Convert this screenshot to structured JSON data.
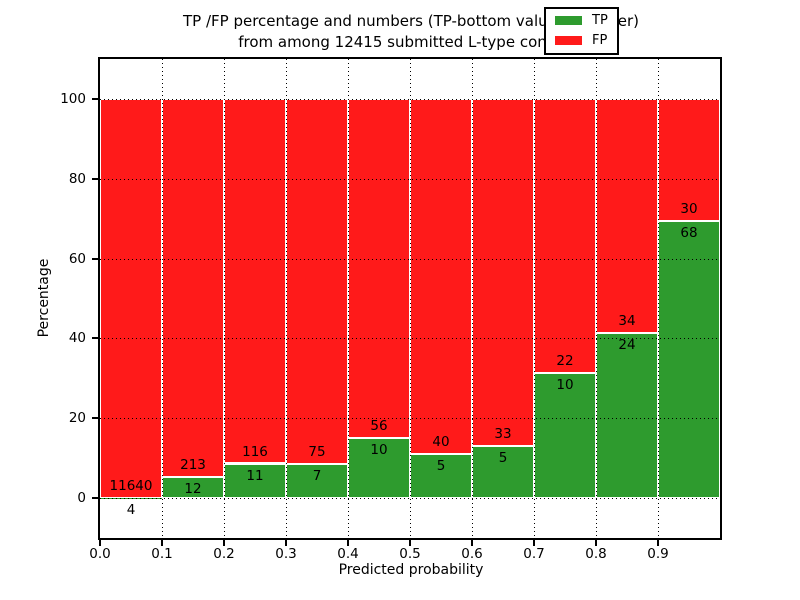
{
  "title": {
    "line1": "TP /FP percentage and numbers (TP-bottom value, FP-upper)",
    "line2": "from among 12415 submitted L-type contacts"
  },
  "axes": {
    "xlabel": "Predicted probability",
    "ylabel": "Percentage",
    "yticks": [
      0,
      20,
      40,
      60,
      80,
      100
    ],
    "xtick_labels": [
      "0.0",
      "0.1",
      "0.2",
      "0.3",
      "0.4",
      "0.5",
      "0.6",
      "0.7",
      "0.8",
      "0.9"
    ],
    "ylim": [
      -10,
      110
    ],
    "xlim": [
      0.0,
      1.0
    ]
  },
  "colors": {
    "tp": "#2e9b2e",
    "fp": "#ff1a1a"
  },
  "legend": {
    "items": [
      {
        "label": "TP",
        "color": "#2e9b2e"
      },
      {
        "label": "FP",
        "color": "#ff1a1a"
      }
    ],
    "position": "upper right"
  },
  "chart_data": {
    "type": "bar",
    "stacked": true,
    "normalized": "percent (each bin sums to 100)",
    "title": "TP /FP percentage and numbers (TP-bottom value, FP-upper) from among 12415 submitted L-type contacts",
    "xlabel": "Predicted probability",
    "ylabel": "Percentage",
    "xlim": [
      0.0,
      1.0
    ],
    "ylim": [
      -10,
      110
    ],
    "grid": "dotted, drawn above bars",
    "legend_position": "upper right",
    "total_submitted": 12415,
    "bin_edges": [
      0.0,
      0.1,
      0.2,
      0.3,
      0.4,
      0.5,
      0.6,
      0.7,
      0.8,
      0.9,
      1.0
    ],
    "categories": [
      "0.0-0.1",
      "0.1-0.2",
      "0.2-0.3",
      "0.3-0.4",
      "0.4-0.5",
      "0.5-0.6",
      "0.6-0.7",
      "0.7-0.8",
      "0.8-0.9",
      "0.9-1.0"
    ],
    "series": [
      {
        "name": "TP",
        "color": "#2e9b2e",
        "counts": [
          4,
          12,
          11,
          7,
          10,
          5,
          5,
          10,
          24,
          68
        ],
        "percent": [
          0.03,
          5.33,
          8.66,
          8.54,
          15.15,
          11.11,
          13.16,
          31.25,
          41.38,
          69.39
        ]
      },
      {
        "name": "FP",
        "color": "#ff1a1a",
        "counts": [
          11640,
          213,
          116,
          75,
          56,
          40,
          33,
          22,
          34,
          30
        ],
        "percent": [
          99.97,
          94.67,
          91.34,
          91.46,
          84.85,
          88.89,
          86.84,
          68.75,
          58.62,
          30.61
        ]
      }
    ]
  }
}
